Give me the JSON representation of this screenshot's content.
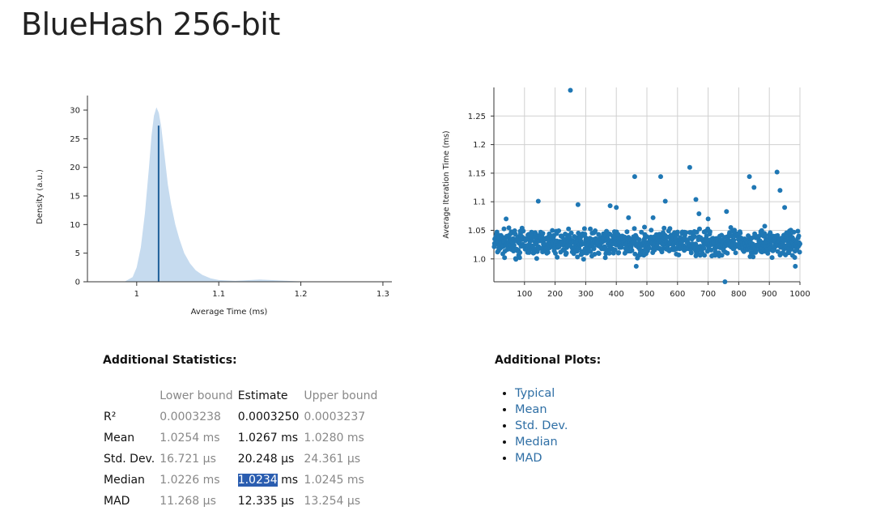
{
  "page": {
    "title": "BlueHash 256-bit"
  },
  "chart_data": [
    {
      "type": "area",
      "xlabel": "Average Time (ms)",
      "ylabel": "Density (a.u.)",
      "xlim": [
        0.94,
        1.305
      ],
      "ylim": [
        0,
        30
      ],
      "xticks": [
        "1",
        "1.1",
        "1.2",
        "1.3"
      ],
      "yticks": [
        "0",
        "5",
        "10",
        "15",
        "20",
        "25",
        "30"
      ],
      "x": [
        0.985,
        0.995,
        1.0,
        1.005,
        1.01,
        1.015,
        1.018,
        1.021,
        1.024,
        1.027,
        1.03,
        1.034,
        1.038,
        1.042,
        1.047,
        1.052,
        1.058,
        1.065,
        1.072,
        1.08,
        1.09,
        1.1,
        1.12,
        1.15,
        1.2,
        1.3
      ],
      "y": [
        0.0,
        0.8,
        2.5,
        6.0,
        12.0,
        20.0,
        25.5,
        29.0,
        30.5,
        29.5,
        27.0,
        22.0,
        17.0,
        13.5,
        10.0,
        7.5,
        5.0,
        3.2,
        2.0,
        1.2,
        0.6,
        0.3,
        0.15,
        0.4,
        0.05,
        0.0
      ],
      "estimate_line": {
        "x": 1.0267,
        "y": 27.3
      },
      "color": "#c6dbef",
      "line_color": "#1f5f99"
    },
    {
      "type": "scatter",
      "ylabel": "Average Iteration Time (ms)",
      "xlim": [
        0,
        1000
      ],
      "ylim": [
        0.96,
        1.3
      ],
      "xticks": [
        "100",
        "200",
        "300",
        "400",
        "500",
        "600",
        "700",
        "800",
        "900",
        "1000"
      ],
      "yticks": [
        "1.0",
        "1.05",
        "1.1",
        "1.15",
        "1.2",
        "1.25"
      ],
      "grid": true,
      "color": "#1f77b4",
      "n_points": 1000,
      "band": [
        0.995,
        1.06
      ],
      "outliers": [
        {
          "x": 250,
          "y": 1.295
        },
        {
          "x": 145,
          "y": 1.101
        },
        {
          "x": 275,
          "y": 1.095
        },
        {
          "x": 460,
          "y": 1.144
        },
        {
          "x": 545,
          "y": 1.144
        },
        {
          "x": 560,
          "y": 1.101
        },
        {
          "x": 640,
          "y": 1.16
        },
        {
          "x": 660,
          "y": 1.104
        },
        {
          "x": 670,
          "y": 1.079
        },
        {
          "x": 760,
          "y": 1.083
        },
        {
          "x": 835,
          "y": 1.144
        },
        {
          "x": 850,
          "y": 1.125
        },
        {
          "x": 925,
          "y": 1.152
        },
        {
          "x": 935,
          "y": 1.12
        },
        {
          "x": 950,
          "y": 1.09
        },
        {
          "x": 755,
          "y": 0.96
        },
        {
          "x": 465,
          "y": 0.987
        },
        {
          "x": 985,
          "y": 0.987
        },
        {
          "x": 40,
          "y": 1.07
        },
        {
          "x": 380,
          "y": 1.093
        },
        {
          "x": 400,
          "y": 1.09
        },
        {
          "x": 440,
          "y": 1.072
        },
        {
          "x": 520,
          "y": 1.072
        },
        {
          "x": 700,
          "y": 1.07
        }
      ]
    }
  ],
  "stats": {
    "heading": "Additional Statistics:",
    "columns": [
      "",
      "Lower bound",
      "Estimate",
      "Upper bound"
    ],
    "rows": [
      {
        "label": "R²",
        "lower": "0.0003238",
        "estimate": "0.0003250",
        "upper": "0.0003237"
      },
      {
        "label": "Mean",
        "lower": "1.0254 ms",
        "estimate": "1.0267 ms",
        "upper": "1.0280 ms"
      },
      {
        "label": "Std. Dev.",
        "lower": "16.721 µs",
        "estimate": "20.248 µs",
        "upper": "24.361 µs"
      },
      {
        "label": "Median",
        "lower": "1.0226 ms",
        "estimate_selected": "1.0234",
        "estimate_rest": " ms",
        "upper": "1.0245 ms"
      },
      {
        "label": "MAD",
        "lower": "11.268 µs",
        "estimate": "12.335 µs",
        "upper": "13.254 µs"
      }
    ]
  },
  "plots": {
    "heading": "Additional Plots:",
    "links": [
      "Typical",
      "Mean",
      "Std. Dev.",
      "Median",
      "MAD"
    ],
    "link_color": "#2f6fa5"
  }
}
